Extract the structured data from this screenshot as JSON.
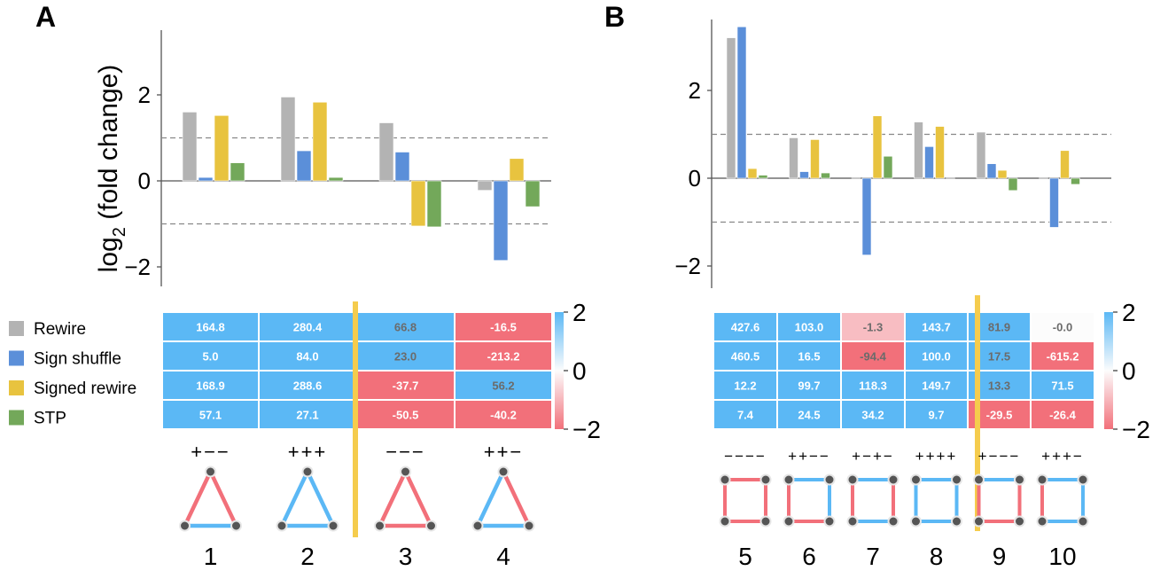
{
  "panels": {
    "A": {
      "label": "A"
    },
    "B": {
      "label": "B"
    }
  },
  "legend": [
    {
      "label": "Rewire",
      "color": "#b3b3b3"
    },
    {
      "label": "Sign shuffle",
      "color": "#5b8fd9"
    },
    {
      "label": "Signed rewire",
      "color": "#e8c33f"
    },
    {
      "label": "STP",
      "color": "#73a85a"
    }
  ],
  "colors": {
    "positive": "#5bb8f5",
    "negative": "#f2707a",
    "divider": "#f5cc4d",
    "node": "#555555"
  },
  "chart_data": [
    {
      "panel": "A",
      "type": "bar",
      "ylabel_base": "log",
      "ylabel_sub": "2",
      "ylabel_rest": " (fold change)",
      "ylim": [
        -2.5,
        3.5
      ],
      "yticks": [
        2,
        0,
        -2
      ],
      "ytick_labels": [
        "2",
        "0",
        "−2"
      ],
      "reference_lines": [
        1,
        -1
      ],
      "categories": [
        "1",
        "2",
        "3",
        "4"
      ],
      "series": [
        {
          "name": "Rewire",
          "values": [
            1.6,
            1.95,
            1.35,
            -0.22
          ]
        },
        {
          "name": "Sign shuffle",
          "values": [
            0.08,
            0.7,
            0.67,
            -1.85
          ]
        },
        {
          "name": "Signed rewire",
          "values": [
            1.52,
            1.83,
            -1.05,
            0.52
          ]
        },
        {
          "name": "STP",
          "values": [
            0.42,
            0.08,
            -1.07,
            -0.6
          ]
        }
      ]
    },
    {
      "panel": "B",
      "type": "bar",
      "ylim": [
        -2.5,
        3.5
      ],
      "yticks": [
        2,
        0,
        -2
      ],
      "ytick_labels": [
        "2",
        "0",
        "−2"
      ],
      "reference_lines": [
        1,
        -1
      ],
      "categories": [
        "5",
        "6",
        "7",
        "8",
        "9",
        "10"
      ],
      "series": [
        {
          "name": "Rewire",
          "values": [
            3.2,
            0.92,
            0.0,
            1.28,
            1.05,
            0.0
          ]
        },
        {
          "name": "Sign shuffle",
          "values": [
            3.45,
            0.15,
            -1.75,
            0.72,
            0.33,
            -1.12
          ]
        },
        {
          "name": "Signed rewire",
          "values": [
            0.22,
            0.88,
            1.42,
            1.18,
            0.18,
            0.63
          ]
        },
        {
          "name": "STP",
          "values": [
            0.07,
            0.12,
            0.5,
            0.0,
            -0.28,
            -0.14
          ]
        }
      ]
    },
    {
      "panel": "A",
      "type": "heatmap",
      "rows": [
        "Rewire",
        "Sign shuffle",
        "Signed rewire",
        "STP"
      ],
      "columns": [
        "1",
        "2",
        "3",
        "4"
      ],
      "cells": [
        [
          {
            "text": "164.8",
            "v": 2
          },
          {
            "text": "280.4",
            "v": 2
          },
          {
            "text": "66.8",
            "v": 2
          },
          {
            "text": "-16.5",
            "v": -2
          }
        ],
        [
          {
            "text": "5.0",
            "v": 2
          },
          {
            "text": "84.0",
            "v": 2
          },
          {
            "text": "23.0",
            "v": 2
          },
          {
            "text": "-213.2",
            "v": -2
          }
        ],
        [
          {
            "text": "168.9",
            "v": 2
          },
          {
            "text": "288.6",
            "v": 2
          },
          {
            "text": "-37.7",
            "v": -2
          },
          {
            "text": "56.2",
            "v": 2
          }
        ],
        [
          {
            "text": "57.1",
            "v": 2
          },
          {
            "text": "27.1",
            "v": 2
          },
          {
            "text": "-50.5",
            "v": -2
          },
          {
            "text": "-40.2",
            "v": -2
          }
        ]
      ],
      "colorbar": {
        "ticks": [
          "2",
          "0",
          "−2"
        ],
        "range": [
          -2,
          2
        ]
      },
      "motif_signs": [
        "+−−",
        "+++",
        "−−−",
        "++−"
      ],
      "motif_numbers": [
        "1",
        "2",
        "3",
        "4"
      ]
    },
    {
      "panel": "B",
      "type": "heatmap",
      "rows": [
        "Rewire",
        "Sign shuffle",
        "Signed rewire",
        "STP"
      ],
      "columns": [
        "5",
        "6",
        "7",
        "8",
        "9",
        "10"
      ],
      "cells": [
        [
          {
            "text": "427.6",
            "v": 2
          },
          {
            "text": "103.0",
            "v": 2
          },
          {
            "text": "-1.3",
            "v": -0.9
          },
          {
            "text": "143.7",
            "v": 2
          },
          {
            "text": "81.9",
            "v": 2
          },
          {
            "text": "-0.0",
            "v": 0
          }
        ],
        [
          {
            "text": "460.5",
            "v": 2
          },
          {
            "text": "16.5",
            "v": 2
          },
          {
            "text": "-94.4",
            "v": -2
          },
          {
            "text": "100.0",
            "v": 2
          },
          {
            "text": "17.5",
            "v": 2
          },
          {
            "text": "-615.2",
            "v": -2
          }
        ],
        [
          {
            "text": "12.2",
            "v": 2
          },
          {
            "text": "99.7",
            "v": 2
          },
          {
            "text": "118.3",
            "v": 2
          },
          {
            "text": "149.7",
            "v": 2
          },
          {
            "text": "13.3",
            "v": 2
          },
          {
            "text": "71.5",
            "v": 2
          }
        ],
        [
          {
            "text": "7.4",
            "v": 2
          },
          {
            "text": "24.5",
            "v": 2
          },
          {
            "text": "34.2",
            "v": 2
          },
          {
            "text": "9.7",
            "v": 2
          },
          {
            "text": "-29.5",
            "v": -2
          },
          {
            "text": "-26.4",
            "v": -2
          }
        ]
      ],
      "colorbar": {
        "ticks": [
          "2",
          "0",
          "−2"
        ],
        "range": [
          -2,
          2
        ]
      },
      "motif_signs": [
        "−−−−",
        "++−−",
        "+−+−",
        "++++",
        "+−−−",
        "+++−"
      ],
      "motif_numbers": [
        "5",
        "6",
        "7",
        "8",
        "9",
        "10"
      ]
    }
  ]
}
